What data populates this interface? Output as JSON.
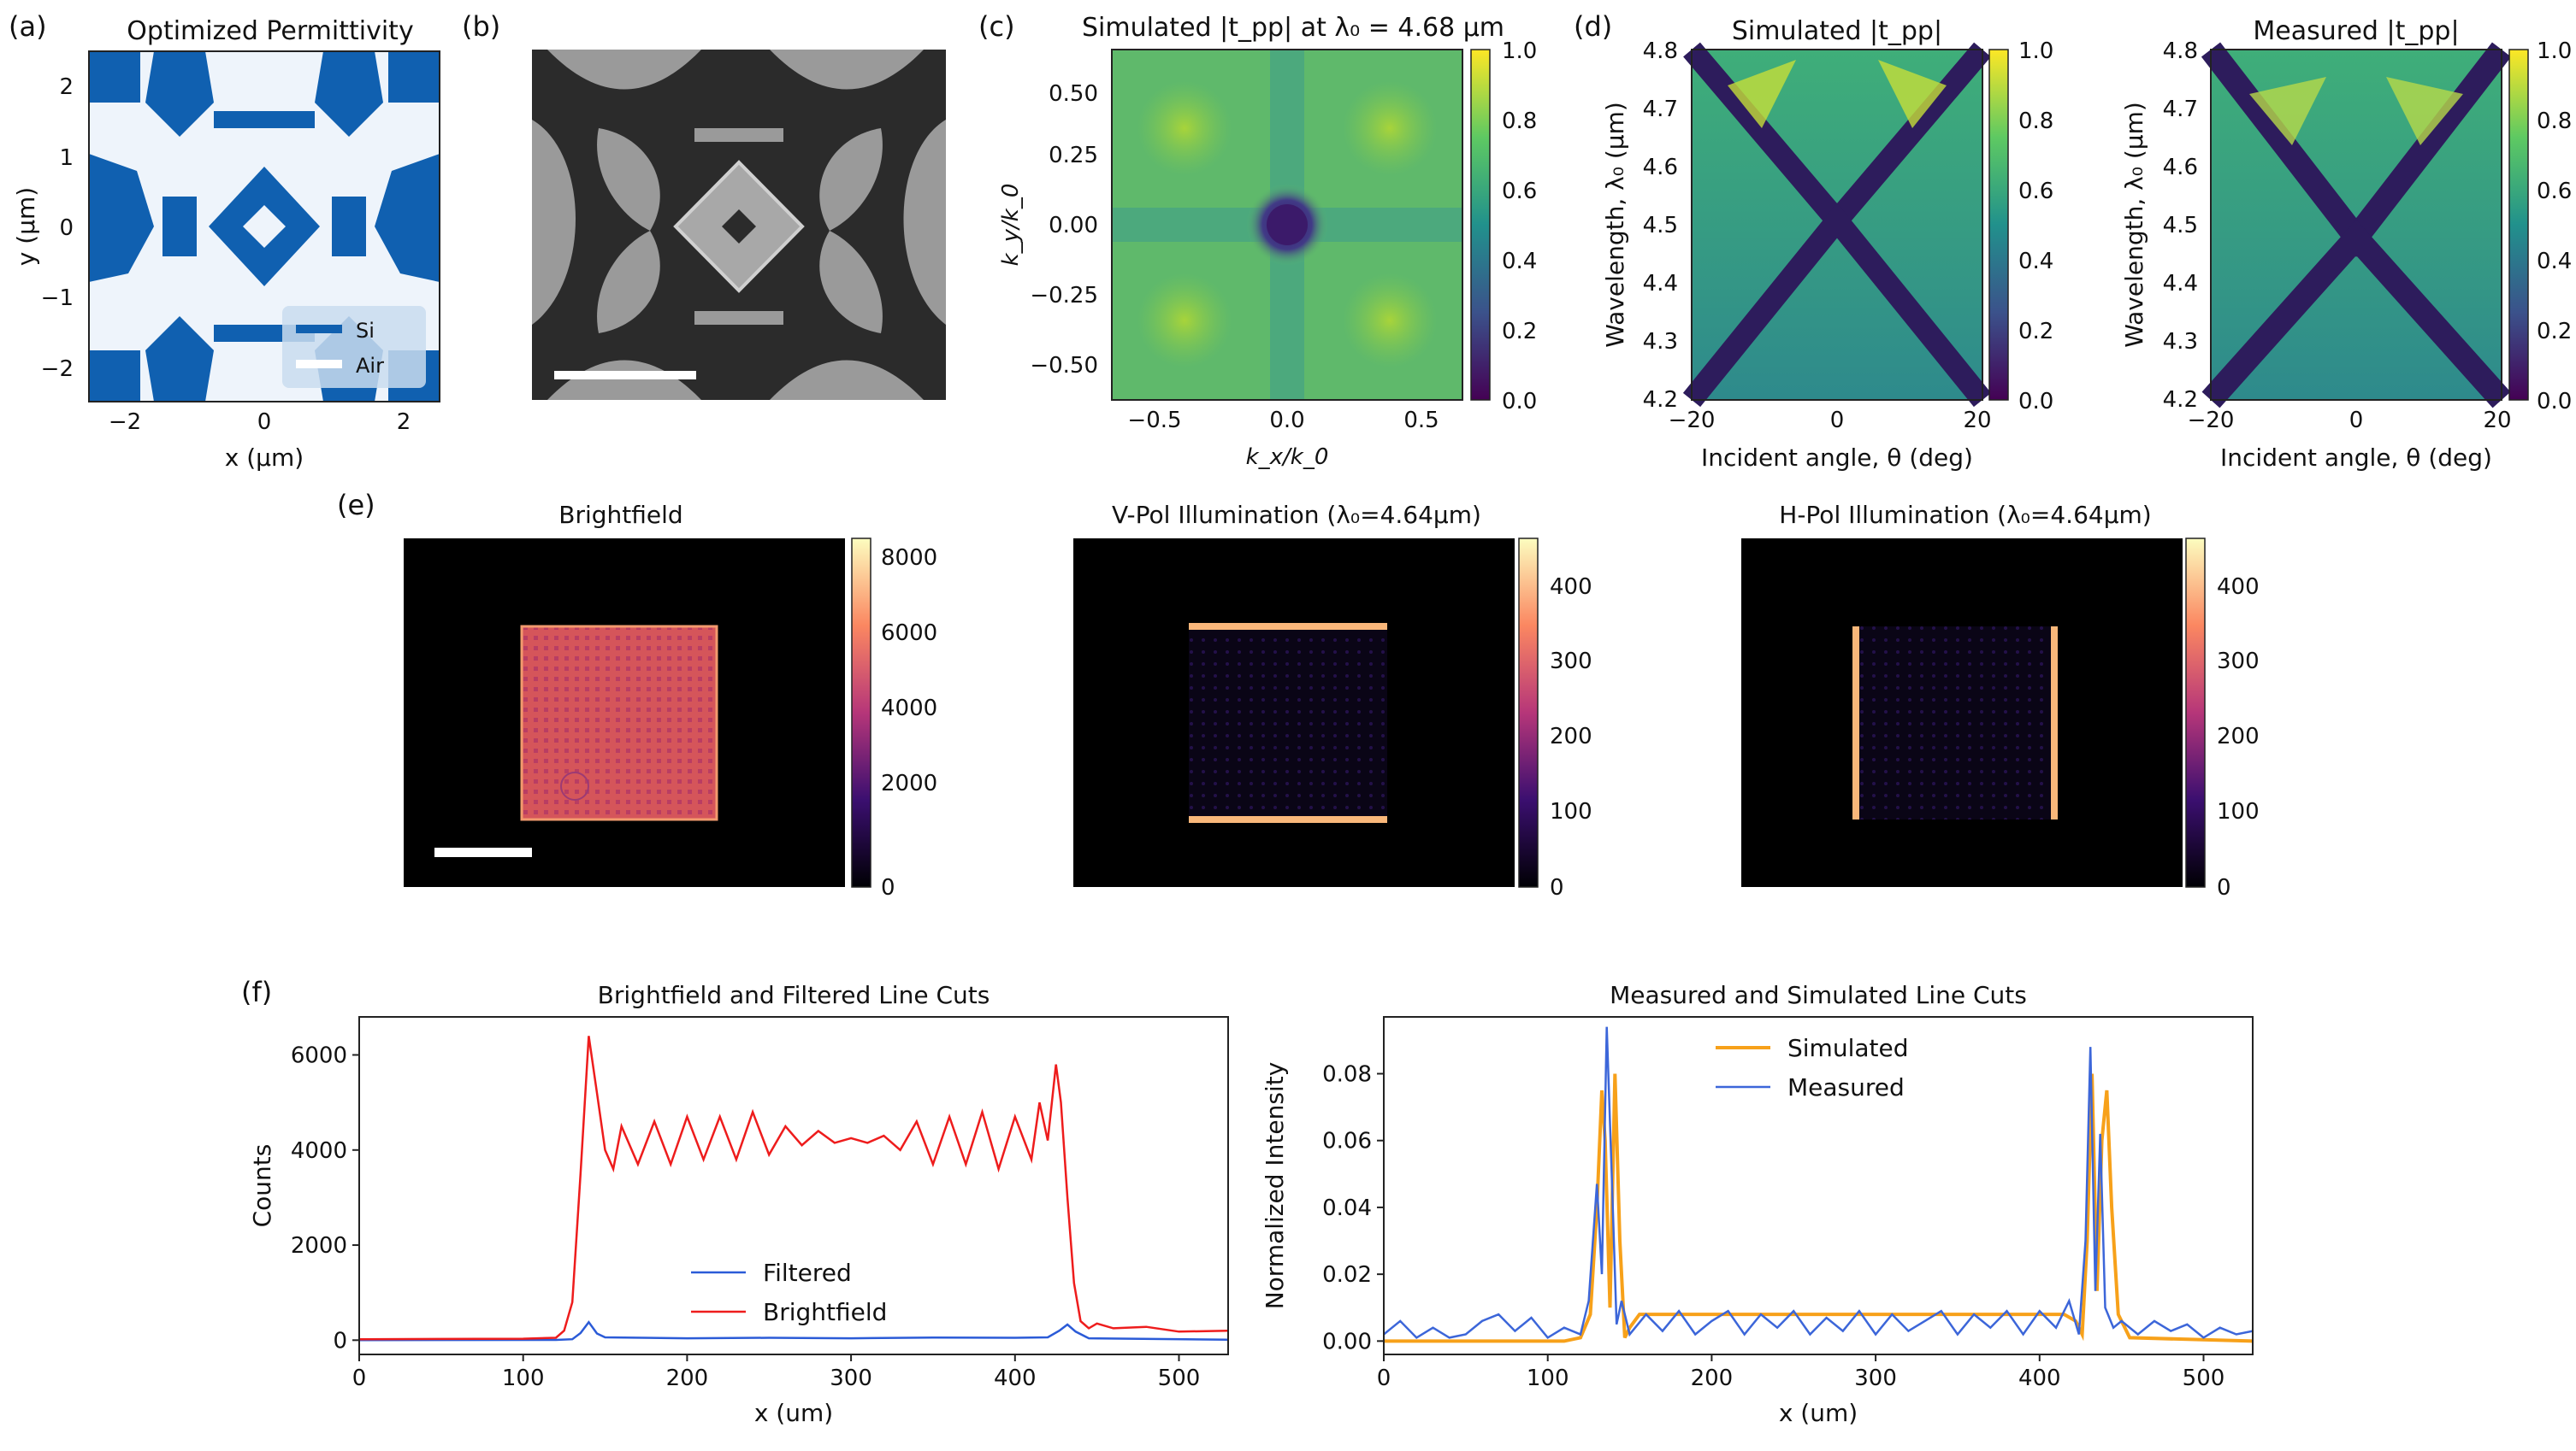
{
  "panels": {
    "a": {
      "label": "(a)",
      "title": "Optimized Permittivity",
      "xlabel": "x (μm)",
      "ylabel": "y (μm)",
      "xticks": [
        "−2",
        "0",
        "2"
      ],
      "yticks": [
        "2",
        "1",
        "0",
        "−1",
        "−2"
      ],
      "legend": [
        "Si",
        "Air"
      ]
    },
    "b": {
      "label": "(b)"
    },
    "c": {
      "label": "(c)",
      "title": "Simulated |t_pp| at λ₀ = 4.68 μm",
      "xlabel": "k_x/k_0",
      "ylabel": "k_y/k_0",
      "xticks": [
        "−0.5",
        "0.0",
        "0.5"
      ],
      "yticks": [
        "0.50",
        "0.25",
        "0.00",
        "−0.25",
        "−0.50"
      ],
      "cbar_ticks": [
        "1.0",
        "0.8",
        "0.6",
        "0.4",
        "0.2",
        "0.0"
      ]
    },
    "d": {
      "label": "(d)",
      "title_left": "Simulated |t_pp|",
      "title_right": "Measured |t_pp|",
      "xlabel": "Incident angle, θ (deg)",
      "ylabel": "Wavelength, λ₀ (μm)",
      "xticks": [
        "−20",
        "0",
        "20"
      ],
      "yticks": [
        "4.8",
        "4.7",
        "4.6",
        "4.5",
        "4.4",
        "4.3",
        "4.2"
      ],
      "cbar_ticks": [
        "1.0",
        "0.8",
        "0.6",
        "0.4",
        "0.2",
        "0.0"
      ]
    },
    "e": {
      "label": "(e)",
      "title_bf": "Brightfield",
      "title_v": "V-Pol Illumination (λ₀=4.64μm)",
      "title_h": "H-Pol Illumination (λ₀=4.64μm)",
      "cbar_bf": [
        "8000",
        "6000",
        "4000",
        "2000",
        "0"
      ],
      "cbar_v": [
        "400",
        "300",
        "200",
        "100",
        "0"
      ],
      "cbar_h": [
        "400",
        "300",
        "200",
        "100",
        "0"
      ]
    },
    "f": {
      "label": "(f)"
    }
  },
  "chart_data": [
    {
      "type": "line",
      "title": "Brightfield and Filtered Line Cuts",
      "xlabel": "x (um)",
      "ylabel": "Counts",
      "xlim": [
        0,
        530
      ],
      "ylim": [
        -300,
        6800
      ],
      "xticks": [
        0,
        100,
        200,
        300,
        400,
        500
      ],
      "yticks": [
        0,
        2000,
        4000,
        6000
      ],
      "legend": "bottom-center",
      "series": [
        {
          "name": "Filtered",
          "color": "#2b5bd7",
          "x": [
            0,
            120,
            130,
            135,
            140,
            145,
            150,
            200,
            250,
            300,
            350,
            400,
            420,
            427,
            432,
            437,
            445,
            530
          ],
          "y": [
            0,
            5,
            20,
            150,
            380,
            140,
            60,
            40,
            50,
            40,
            55,
            50,
            60,
            200,
            330,
            180,
            40,
            10
          ]
        },
        {
          "name": "Brightfield",
          "color": "#ee1c1c",
          "x": [
            0,
            100,
            120,
            125,
            130,
            135,
            140,
            145,
            150,
            155,
            160,
            170,
            180,
            190,
            200,
            210,
            220,
            230,
            240,
            250,
            260,
            270,
            280,
            290,
            300,
            310,
            320,
            330,
            340,
            350,
            360,
            370,
            380,
            390,
            400,
            410,
            415,
            420,
            425,
            428,
            432,
            436,
            440,
            445,
            450,
            460,
            480,
            500,
            530
          ],
          "y": [
            20,
            30,
            50,
            200,
            800,
            3500,
            6400,
            5200,
            4000,
            3600,
            4500,
            3700,
            4600,
            3700,
            4700,
            3800,
            4700,
            3800,
            4800,
            3900,
            4500,
            4100,
            4400,
            4150,
            4250,
            4150,
            4300,
            4000,
            4600,
            3700,
            4700,
            3700,
            4800,
            3600,
            4700,
            3800,
            5000,
            4200,
            5800,
            5000,
            3000,
            1200,
            400,
            250,
            350,
            250,
            280,
            180,
            200
          ]
        }
      ]
    },
    {
      "type": "line",
      "title": "Measured and Simulated Line Cuts",
      "xlabel": "x (um)",
      "ylabel": "Normalized Intensity",
      "xlim": [
        0,
        530
      ],
      "ylim": [
        -0.004,
        0.097
      ],
      "xticks": [
        0,
        100,
        200,
        300,
        400,
        500
      ],
      "yticks": [
        0.0,
        0.02,
        0.04,
        0.06,
        0.08
      ],
      "legend": "top-center",
      "series": [
        {
          "name": "Simulated",
          "color": "#f7a11a",
          "x": [
            0,
            110,
            120,
            126,
            130,
            133,
            135,
            138,
            141,
            144,
            147,
            150,
            156,
            165,
            200,
            300,
            400,
            415,
            422,
            426,
            429,
            432,
            435,
            438,
            441,
            444,
            448,
            455,
            530
          ],
          "y": [
            0,
            0,
            0.001,
            0.008,
            0.04,
            0.075,
            0.06,
            0.01,
            0.08,
            0.03,
            0.001,
            0.004,
            0.008,
            0.008,
            0.008,
            0.008,
            0.008,
            0.008,
            0.006,
            0.002,
            0.03,
            0.08,
            0.015,
            0.06,
            0.075,
            0.04,
            0.008,
            0.001,
            0
          ]
        },
        {
          "name": "Measured",
          "color": "#3c66d9",
          "x": [
            0,
            5,
            10,
            20,
            30,
            40,
            50,
            60,
            70,
            80,
            90,
            100,
            110,
            120,
            125,
            130,
            133,
            136,
            139,
            142,
            145,
            150,
            160,
            170,
            180,
            190,
            200,
            210,
            220,
            230,
            240,
            250,
            260,
            270,
            280,
            290,
            300,
            310,
            320,
            330,
            340,
            350,
            360,
            370,
            380,
            390,
            400,
            410,
            418,
            424,
            428,
            431,
            434,
            437,
            440,
            445,
            450,
            460,
            470,
            480,
            490,
            500,
            510,
            520,
            530
          ],
          "y": [
            0.002,
            0.004,
            0.006,
            0.001,
            0.004,
            0.001,
            0.002,
            0.006,
            0.008,
            0.003,
            0.007,
            0.001,
            0.004,
            0.002,
            0.012,
            0.047,
            0.02,
            0.094,
            0.05,
            0.005,
            0.012,
            0.002,
            0.008,
            0.003,
            0.009,
            0.002,
            0.006,
            0.009,
            0.002,
            0.008,
            0.004,
            0.009,
            0.002,
            0.007,
            0.003,
            0.009,
            0.002,
            0.008,
            0.003,
            0.006,
            0.009,
            0.002,
            0.008,
            0.004,
            0.009,
            0.002,
            0.009,
            0.004,
            0.012,
            0.002,
            0.03,
            0.088,
            0.015,
            0.062,
            0.01,
            0.004,
            0.006,
            0.002,
            0.006,
            0.003,
            0.005,
            0.001,
            0.004,
            0.002,
            0.003
          ]
        }
      ]
    }
  ]
}
